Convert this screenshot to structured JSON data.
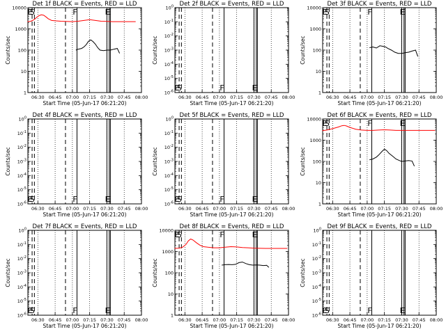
{
  "colors": {
    "events": "#000000",
    "lld": "#ff0000",
    "axes": "#000000",
    "background": "#ffffff"
  },
  "ylabel": "Counts/sec",
  "xlabel": "Start Time (05-Jun-17 06:21:20)",
  "x_ticks": [
    "06:30",
    "06:45",
    "07:00",
    "07:15",
    "07:30",
    "07:45",
    "08:00"
  ],
  "y_ticks_decade": [
    "1",
    "10",
    "100",
    "1000",
    "10000"
  ],
  "y_ticks_empty": [
    "10^0",
    "10^-1",
    "10^-2",
    "10^-3",
    "10^-4",
    "10^-5",
    "10^-6"
  ],
  "chart_data": [
    {
      "type": "line",
      "title": "Det 1f BLACK = Events, RED = LLD",
      "empty": false,
      "xlim": [
        "06:21:20",
        "08:00:00"
      ],
      "ylim": [
        1,
        10000
      ],
      "yscale": "log",
      "series": [
        {
          "color": "#ff0000",
          "x": [
            "06:21",
            "06:24",
            "06:27",
            "06:29",
            "06:31",
            "06:33",
            "06:35",
            "06:37",
            "06:39",
            "06:42",
            "06:45",
            "06:50",
            "07:00",
            "07:05",
            "07:10",
            "07:15",
            "07:20",
            "07:25",
            "07:30",
            "07:35",
            "07:40",
            "07:45",
            "07:50",
            "07:55"
          ],
          "y": [
            2200,
            2300,
            2800,
            3500,
            4200,
            4600,
            4400,
            3700,
            3000,
            2500,
            2400,
            2300,
            2200,
            2300,
            2500,
            2700,
            2500,
            2300,
            2250,
            2200,
            2200,
            2200,
            2200,
            2200
          ]
        },
        {
          "color": "#000000",
          "x": [
            "07:03",
            "07:05",
            "07:08",
            "07:10",
            "07:12",
            "07:14",
            "07:16",
            "07:18",
            "07:20",
            "07:22",
            "07:24",
            "07:27",
            "07:30",
            "07:33",
            "07:36",
            "07:39",
            "07:41"
          ],
          "y": [
            100,
            110,
            120,
            140,
            180,
            260,
            300,
            250,
            190,
            130,
            100,
            95,
            100,
            100,
            110,
            120,
            70
          ]
        }
      ],
      "event_lines": [
        {
          "time": "06:25",
          "label": "E",
          "style": "dashed"
        },
        {
          "time": "06:27",
          "label": "S",
          "style": "dashed"
        },
        {
          "time": "06:54",
          "label": "",
          "style": "dashed"
        },
        {
          "time": "07:04",
          "label": "F",
          "style": "solid"
        },
        {
          "time": "07:30",
          "label": "",
          "style": "solid"
        },
        {
          "time": "07:32",
          "label": "F",
          "style": "solid"
        },
        {
          "time": "07:33",
          "label": "E",
          "style": "solid"
        }
      ],
      "labels_at": "top"
    },
    {
      "type": "line",
      "title": "Det 2f BLACK = Events, RED = LLD",
      "empty": true,
      "xlim": [
        "06:21:20",
        "08:00:00"
      ],
      "ylim": [
        1e-06,
        1
      ],
      "yscale": "log",
      "series": [],
      "event_lines": [
        {
          "time": "06:25",
          "label": "E",
          "style": "dashed"
        },
        {
          "time": "06:27",
          "label": "S",
          "style": "dashed"
        },
        {
          "time": "06:54",
          "label": "",
          "style": "dashed"
        },
        {
          "time": "07:04",
          "label": "F",
          "style": "solid"
        },
        {
          "time": "07:30",
          "label": "",
          "style": "solid"
        },
        {
          "time": "07:32",
          "label": "F",
          "style": "solid"
        },
        {
          "time": "07:33",
          "label": "E",
          "style": "solid"
        }
      ],
      "labels_at": "bottom"
    },
    {
      "type": "line",
      "title": "Det 3f BLACK = Events, RED = LLD",
      "empty": false,
      "xlim": [
        "06:21:20",
        "08:00:00"
      ],
      "ylim": [
        1,
        10000
      ],
      "yscale": "log",
      "series": [
        {
          "color": "#000000",
          "x": [
            "07:02",
            "07:05",
            "07:08",
            "07:11",
            "07:14",
            "07:16",
            "07:18",
            "07:21",
            "07:24",
            "07:27",
            "07:30",
            "07:33",
            "07:36",
            "07:39",
            "07:42",
            "07:44"
          ],
          "y": [
            130,
            140,
            125,
            160,
            150,
            140,
            120,
            100,
            80,
            70,
            70,
            75,
            80,
            90,
            100,
            50
          ]
        }
      ],
      "event_lines": [
        {
          "time": "06:25",
          "label": "E",
          "style": "dashed"
        },
        {
          "time": "06:27",
          "label": "S",
          "style": "dashed"
        },
        {
          "time": "06:54",
          "label": "",
          "style": "dashed"
        },
        {
          "time": "07:04",
          "label": "F",
          "style": "solid"
        },
        {
          "time": "07:30",
          "label": "",
          "style": "solid"
        },
        {
          "time": "07:32",
          "label": "F",
          "style": "solid"
        },
        {
          "time": "07:33",
          "label": "E",
          "style": "solid"
        }
      ],
      "labels_at": "top"
    },
    {
      "type": "line",
      "title": "Det 4f BLACK = Events, RED = LLD",
      "empty": true,
      "xlim": [
        "06:21:20",
        "08:00:00"
      ],
      "ylim": [
        1e-06,
        1
      ],
      "yscale": "log",
      "series": [],
      "event_lines": [
        {
          "time": "06:25",
          "label": "E",
          "style": "dashed"
        },
        {
          "time": "06:27",
          "label": "S",
          "style": "dashed"
        },
        {
          "time": "06:54",
          "label": "",
          "style": "dashed"
        },
        {
          "time": "07:04",
          "label": "F",
          "style": "solid"
        },
        {
          "time": "07:30",
          "label": "",
          "style": "solid"
        },
        {
          "time": "07:32",
          "label": "F",
          "style": "solid"
        },
        {
          "time": "07:33",
          "label": "E",
          "style": "solid"
        }
      ],
      "labels_at": "bottom"
    },
    {
      "type": "line",
      "title": "Det 5f BLACK = Events, RED = LLD",
      "empty": true,
      "xlim": [
        "06:21:20",
        "08:00:00"
      ],
      "ylim": [
        1e-06,
        1
      ],
      "yscale": "log",
      "series": [],
      "event_lines": [
        {
          "time": "06:25",
          "label": "E",
          "style": "dashed"
        },
        {
          "time": "06:27",
          "label": "S",
          "style": "dashed"
        },
        {
          "time": "06:54",
          "label": "",
          "style": "dashed"
        },
        {
          "time": "07:04",
          "label": "F",
          "style": "solid"
        },
        {
          "time": "07:30",
          "label": "",
          "style": "solid"
        },
        {
          "time": "07:32",
          "label": "F",
          "style": "solid"
        },
        {
          "time": "07:33",
          "label": "E",
          "style": "solid"
        }
      ],
      "labels_at": "bottom"
    },
    {
      "type": "line",
      "title": "Det 6f BLACK = Events, RED = LLD",
      "empty": false,
      "xlim": [
        "06:21:20",
        "08:00:00"
      ],
      "ylim": [
        1,
        10000
      ],
      "yscale": "log",
      "series": [
        {
          "color": "#ff0000",
          "x": [
            "06:21",
            "06:25",
            "06:30",
            "06:35",
            "06:38",
            "06:40",
            "06:42",
            "06:45",
            "06:50",
            "06:55",
            "07:00",
            "07:05",
            "07:10",
            "07:15",
            "07:20",
            "07:25",
            "07:30",
            "07:40",
            "07:50",
            "07:59"
          ],
          "y": [
            2800,
            3000,
            3500,
            4200,
            4800,
            5000,
            4700,
            4000,
            3300,
            3000,
            2900,
            2900,
            3000,
            3100,
            3000,
            2900,
            2900,
            2900,
            2900,
            2900
          ]
        },
        {
          "color": "#000000",
          "x": [
            "07:02",
            "07:05",
            "07:08",
            "07:10",
            "07:13",
            "07:15",
            "07:17",
            "07:19",
            "07:22",
            "07:25",
            "07:28",
            "07:30",
            "07:33",
            "07:36",
            "07:39",
            "07:41"
          ],
          "y": [
            120,
            130,
            160,
            200,
            300,
            380,
            320,
            240,
            180,
            130,
            110,
            100,
            105,
            110,
            105,
            60
          ]
        }
      ],
      "event_lines": [
        {
          "time": "06:25",
          "label": "E",
          "style": "dashed"
        },
        {
          "time": "06:27",
          "label": "S",
          "style": "dashed"
        },
        {
          "time": "06:54",
          "label": "",
          "style": "dashed"
        },
        {
          "time": "07:04",
          "label": "F",
          "style": "solid"
        },
        {
          "time": "07:30",
          "label": "",
          "style": "solid"
        },
        {
          "time": "07:32",
          "label": "F",
          "style": "solid"
        },
        {
          "time": "07:33",
          "label": "E",
          "style": "solid"
        }
      ],
      "labels_at": "top"
    },
    {
      "type": "line",
      "title": "Det 7f BLACK = Events, RED = LLD",
      "empty": true,
      "xlim": [
        "06:21:20",
        "08:00:00"
      ],
      "ylim": [
        1e-06,
        1
      ],
      "yscale": "log",
      "series": [],
      "event_lines": [
        {
          "time": "06:25",
          "label": "E",
          "style": "dashed"
        },
        {
          "time": "06:27",
          "label": "S",
          "style": "dashed"
        },
        {
          "time": "06:54",
          "label": "",
          "style": "dashed"
        },
        {
          "time": "07:04",
          "label": "F",
          "style": "solid"
        },
        {
          "time": "07:30",
          "label": "",
          "style": "solid"
        },
        {
          "time": "07:32",
          "label": "F",
          "style": "solid"
        },
        {
          "time": "07:33",
          "label": "E",
          "style": "solid"
        }
      ],
      "labels_at": "bottom"
    },
    {
      "type": "line",
      "title": "Det 8f BLACK = Events, RED = LLD",
      "empty": false,
      "xlim": [
        "06:21:20",
        "08:00:00"
      ],
      "ylim": [
        1,
        10000
      ],
      "yscale": "log",
      "series": [
        {
          "color": "#ff0000",
          "x": [
            "06:21",
            "06:25",
            "06:28",
            "06:31",
            "06:33",
            "06:35",
            "06:37",
            "06:40",
            "06:43",
            "06:46",
            "06:50",
            "06:55",
            "07:00",
            "07:05",
            "07:10",
            "07:15",
            "07:20",
            "07:25",
            "07:30",
            "07:40",
            "07:50",
            "07:59"
          ],
          "y": [
            1400,
            1450,
            1600,
            2200,
            3200,
            3900,
            3500,
            2600,
            2000,
            1700,
            1600,
            1500,
            1500,
            1600,
            1700,
            1650,
            1550,
            1500,
            1450,
            1400,
            1400,
            1400
          ]
        },
        {
          "color": "#000000",
          "x": [
            "07:02",
            "07:05",
            "07:08",
            "07:11",
            "07:14",
            "07:17",
            "07:20",
            "07:23",
            "07:26",
            "07:29",
            "07:32",
            "07:35",
            "07:38",
            "07:41",
            "07:43"
          ],
          "y": [
            230,
            240,
            245,
            240,
            250,
            300,
            320,
            270,
            240,
            230,
            235,
            230,
            220,
            225,
            180
          ]
        }
      ],
      "event_lines": [
        {
          "time": "06:25",
          "label": "E",
          "style": "dashed"
        },
        {
          "time": "06:27",
          "label": "S",
          "style": "dashed"
        },
        {
          "time": "06:54",
          "label": "",
          "style": "dashed"
        },
        {
          "time": "07:04",
          "label": "F",
          "style": "solid"
        },
        {
          "time": "07:30",
          "label": "",
          "style": "solid"
        },
        {
          "time": "07:32",
          "label": "F",
          "style": "solid"
        },
        {
          "time": "07:33",
          "label": "E",
          "style": "solid"
        }
      ],
      "labels_at": "top"
    },
    {
      "type": "line",
      "title": "Det 9f BLACK = Events, RED = LLD",
      "empty": true,
      "xlim": [
        "06:21:20",
        "08:00:00"
      ],
      "ylim": [
        1e-06,
        1
      ],
      "yscale": "log",
      "series": [],
      "event_lines": [
        {
          "time": "06:25",
          "label": "E",
          "style": "dashed"
        },
        {
          "time": "06:27",
          "label": "S",
          "style": "dashed"
        },
        {
          "time": "06:54",
          "label": "",
          "style": "dashed"
        },
        {
          "time": "07:04",
          "label": "F",
          "style": "solid"
        },
        {
          "time": "07:30",
          "label": "",
          "style": "solid"
        },
        {
          "time": "07:32",
          "label": "F",
          "style": "solid"
        },
        {
          "time": "07:33",
          "label": "E",
          "style": "solid"
        }
      ],
      "labels_at": "bottom"
    }
  ]
}
